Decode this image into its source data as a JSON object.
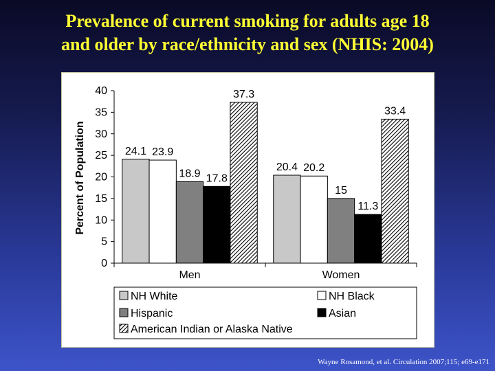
{
  "title": {
    "line1": "Prevalence of current smoking for adults age 18",
    "line2": "and older by race/ethnicity and sex (NHIS: 2004)"
  },
  "citation": "Wayne Rosamond, et al. Circulation  2007;115; e69-e171",
  "colors": {
    "title": "#ffff33",
    "nh_white": "#c8c8c8",
    "nh_black": "#ffffff",
    "hispanic": "#808080",
    "asian": "#000000",
    "american_indian": "hatched"
  },
  "chart_data": {
    "type": "bar",
    "categories": [
      "Men",
      "Women"
    ],
    "series": [
      {
        "name": "NH White",
        "values": [
          24.1,
          20.4
        ]
      },
      {
        "name": "NH Black",
        "values": [
          23.9,
          20.2
        ]
      },
      {
        "name": "Hispanic",
        "values": [
          18.9,
          15
        ]
      },
      {
        "name": "Asian",
        "values": [
          17.8,
          11.3
        ]
      },
      {
        "name": "American Indian or Alaska Native",
        "values": [
          37.3,
          33.4
        ]
      }
    ],
    "ylabel": "Percent of Population",
    "ylim": [
      0,
      40
    ],
    "yticks": [
      0,
      5,
      10,
      15,
      20,
      25,
      30,
      35,
      40
    ],
    "data_labels": true,
    "grid": false,
    "legend": "bottom"
  }
}
